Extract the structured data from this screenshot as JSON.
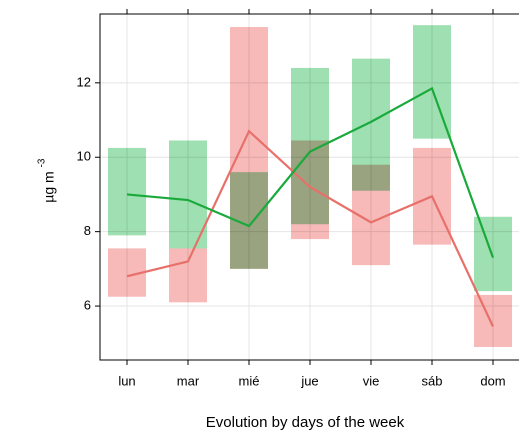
{
  "chart_data": {
    "type": "line_band",
    "xlabel": "Evolution by days of the week",
    "ylabel": "µg m",
    "ylabel_superscript": "-3",
    "categories": [
      "lun",
      "mar",
      "mié",
      "jue",
      "vie",
      "sáb",
      "dom"
    ],
    "series": [
      {
        "color": "#e8706a",
        "band_color": "#f4a3a0",
        "values": [
          6.8,
          7.2,
          10.7,
          9.2,
          8.25,
          8.95,
          5.45
        ],
        "lower": [
          6.25,
          6.1,
          7.0,
          7.8,
          7.1,
          7.65,
          4.9
        ],
        "upper": [
          7.55,
          7.55,
          13.5,
          10.45,
          9.8,
          10.25,
          6.3
        ]
      },
      {
        "color": "#1aaa3c",
        "band_color": "#7dd597",
        "values": [
          9.0,
          8.85,
          8.15,
          10.15,
          10.95,
          11.85,
          7.3
        ],
        "lower": [
          7.9,
          7.55,
          7.0,
          8.2,
          9.1,
          10.5,
          6.4
        ],
        "upper": [
          10.25,
          10.45,
          9.6,
          12.4,
          12.65,
          13.55,
          8.4
        ]
      }
    ],
    "ylim": [
      4.55,
      13.85
    ],
    "yticks": [
      6,
      8,
      10,
      12
    ],
    "grid": true
  }
}
